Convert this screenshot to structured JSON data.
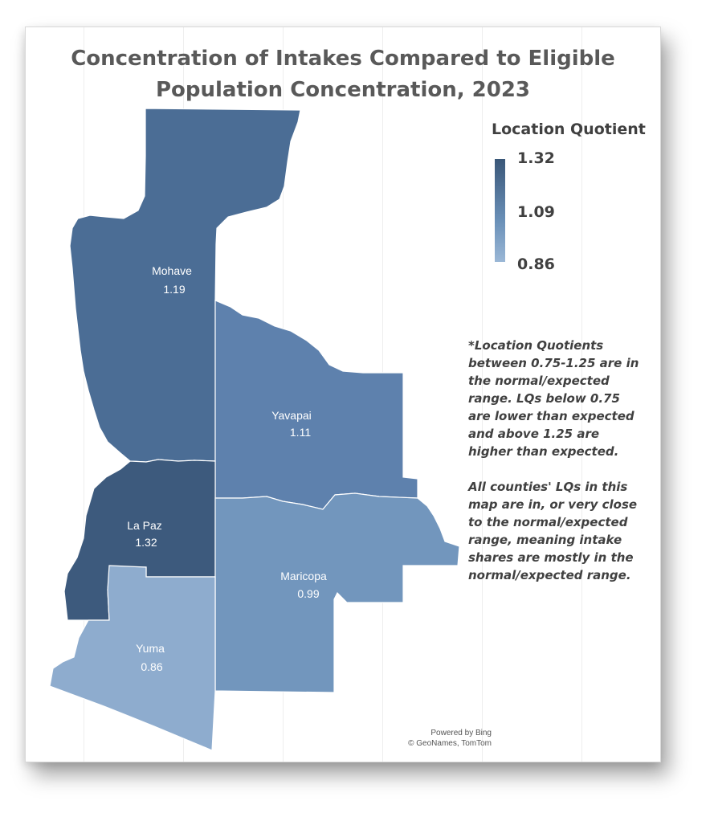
{
  "title": {
    "line1": "Concentration of Intakes Compared to Eligible",
    "line2": "Population Concentration, 2023"
  },
  "legend": {
    "title": "Location Quotient",
    "max": "1.32",
    "mid": "1.09",
    "min": "0.86",
    "color_high": "#3a5778",
    "color_low": "#9ab7d6"
  },
  "counties": [
    {
      "name": "Mohave",
      "lq": "1.19",
      "color": "#4b6d95"
    },
    {
      "name": "Yavapai",
      "lq": "1.11",
      "color": "#5e81ad"
    },
    {
      "name": "La Paz",
      "lq": "1.32",
      "color": "#3d5a7d"
    },
    {
      "name": "Maricopa",
      "lq": "0.99",
      "color": "#7296bd"
    },
    {
      "name": "Yuma",
      "lq": "0.86",
      "color": "#8eacce"
    }
  ],
  "note": {
    "p1": "*Location Quotients between 0.75-1.25 are in the normal/expected range. LQs below 0.75 are lower than expected and above 1.25 are higher than expected.",
    "p2": "All counties' LQs in this map are in, or very close to the normal/expected range, meaning intake shares are mostly in the normal/expected range."
  },
  "credit": {
    "line1": "Powered by Bing",
    "line2": "© GeoNames, TomTom"
  }
}
